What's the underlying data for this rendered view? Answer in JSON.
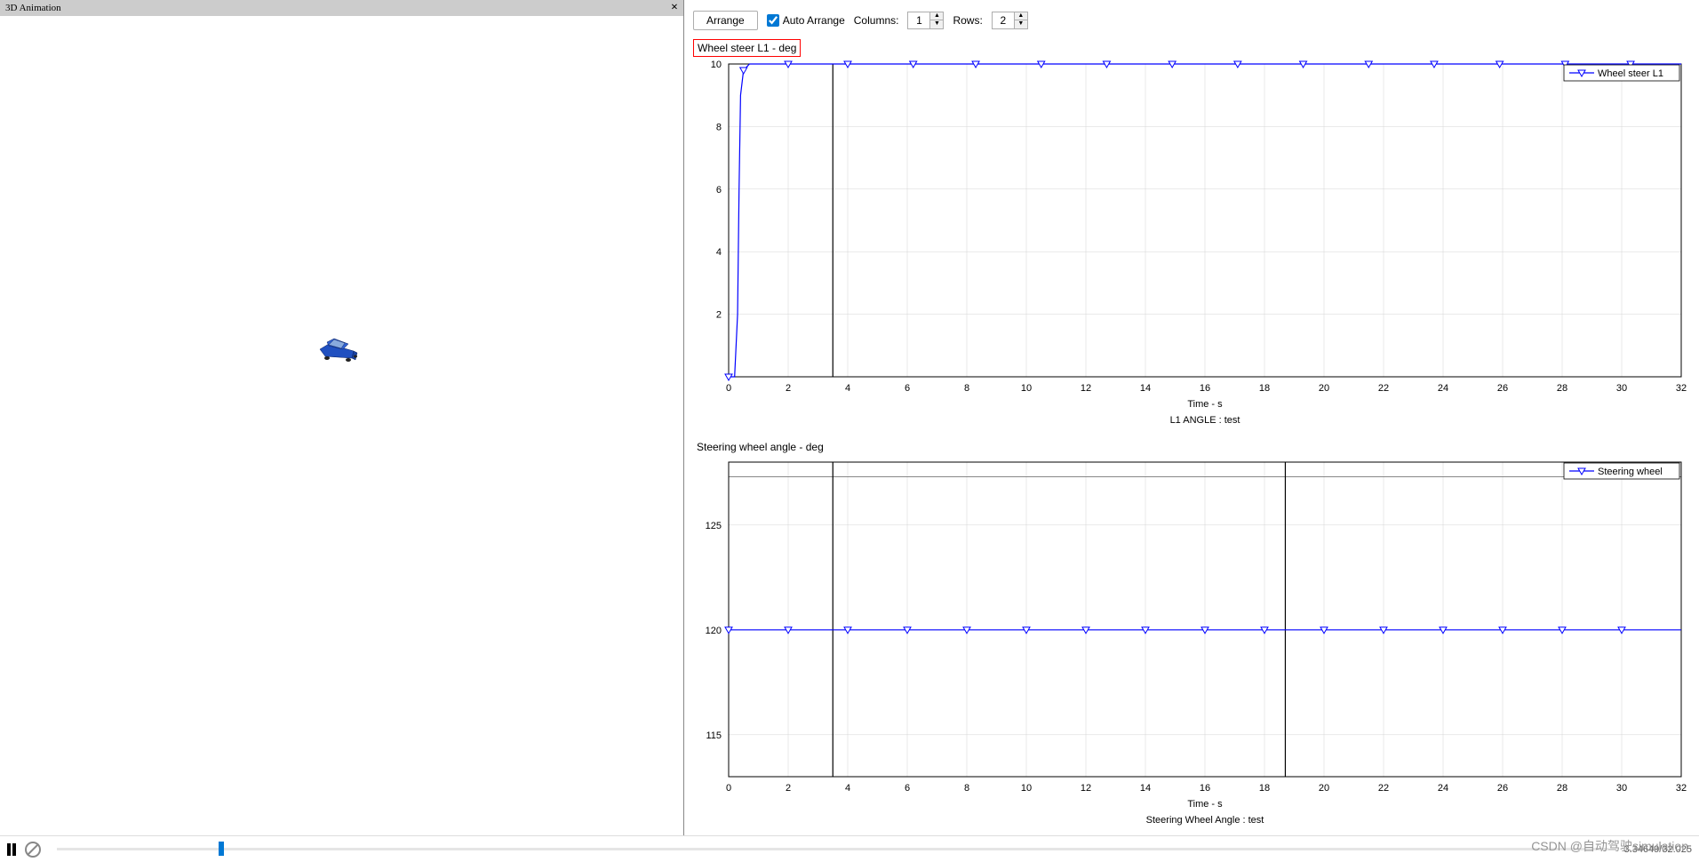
{
  "leftPanel": {
    "title": "3D Animation",
    "closeSymbol": "×"
  },
  "toolbar": {
    "arrangeLabel": "Arrange",
    "autoArrangeLabel": "Auto Arrange",
    "autoArrangeChecked": true,
    "columnsLabel": "Columns:",
    "columnsValue": "1",
    "rowsLabel": "Rows:",
    "rowsValue": "2"
  },
  "chart1": {
    "title": "Wheel steer L1 - deg",
    "type": "line",
    "legend": "Wheel steer L1",
    "xlabel": "Time - s",
    "subtitle": "L1 ANGLE : test",
    "xlim": [
      0,
      32
    ],
    "ylim": [
      0,
      10
    ],
    "xticks": [
      0,
      2,
      4,
      6,
      8,
      10,
      12,
      14,
      16,
      18,
      20,
      22,
      24,
      26,
      28,
      30,
      32
    ],
    "yticks": [
      2,
      4,
      6,
      8,
      10
    ],
    "cursorX": 3.5,
    "lineColor": "#0000ff",
    "gridColor": "#d5d5d5",
    "borderColor": "#000000",
    "markerStyle": "triangle-down",
    "data": [
      {
        "x": 0,
        "y": 0
      },
      {
        "x": 0.2,
        "y": 0
      },
      {
        "x": 0.3,
        "y": 2
      },
      {
        "x": 0.35,
        "y": 6
      },
      {
        "x": 0.4,
        "y": 9
      },
      {
        "x": 0.5,
        "y": 9.8
      },
      {
        "x": 0.7,
        "y": 10
      },
      {
        "x": 2,
        "y": 10
      },
      {
        "x": 4,
        "y": 10
      },
      {
        "x": 6,
        "y": 10
      },
      {
        "x": 8,
        "y": 10
      },
      {
        "x": 10,
        "y": 10
      },
      {
        "x": 12,
        "y": 10
      },
      {
        "x": 14,
        "y": 10
      },
      {
        "x": 16,
        "y": 10
      },
      {
        "x": 18,
        "y": 10
      },
      {
        "x": 20,
        "y": 10
      },
      {
        "x": 22,
        "y": 10
      },
      {
        "x": 24,
        "y": 10
      },
      {
        "x": 26,
        "y": 10
      },
      {
        "x": 28,
        "y": 10
      },
      {
        "x": 30,
        "y": 10
      },
      {
        "x": 32,
        "y": 10
      }
    ],
    "markers": [
      0,
      0.5,
      2,
      4,
      6.2,
      8.3,
      10.5,
      12.7,
      14.9,
      17.1,
      19.3,
      21.5,
      23.7,
      25.9,
      28.1,
      30.3
    ]
  },
  "chart2": {
    "title": "Steering wheel angle - deg",
    "type": "line",
    "legend": "Steering wheel",
    "xlabel": "Time - s",
    "subtitle": "Steering Wheel Angle : test",
    "xlim": [
      0,
      32
    ],
    "ylim": [
      113,
      128
    ],
    "xticks": [
      0,
      2,
      4,
      6,
      8,
      10,
      12,
      14,
      16,
      18,
      20,
      22,
      24,
      26,
      28,
      30,
      32
    ],
    "yticks": [
      115,
      120,
      125
    ],
    "extraVGrids": [
      18.7
    ],
    "extraHGrids": [
      127.3
    ],
    "cursorX": 3.5,
    "cursorX2": 18.7,
    "lineColor": "#0000ff",
    "gridColor": "#d5d5d5",
    "borderColor": "#000000",
    "markerStyle": "triangle-down",
    "constantY": 120,
    "markers": [
      0,
      2,
      4,
      6,
      8,
      10,
      12,
      14,
      16,
      18,
      20,
      22,
      24,
      26,
      28,
      30
    ]
  },
  "bottomBar": {
    "timeDisplay": "3.34649/32.025",
    "progressPercent": 10.4
  },
  "watermark": "CSDN @自动驾驶simulation"
}
